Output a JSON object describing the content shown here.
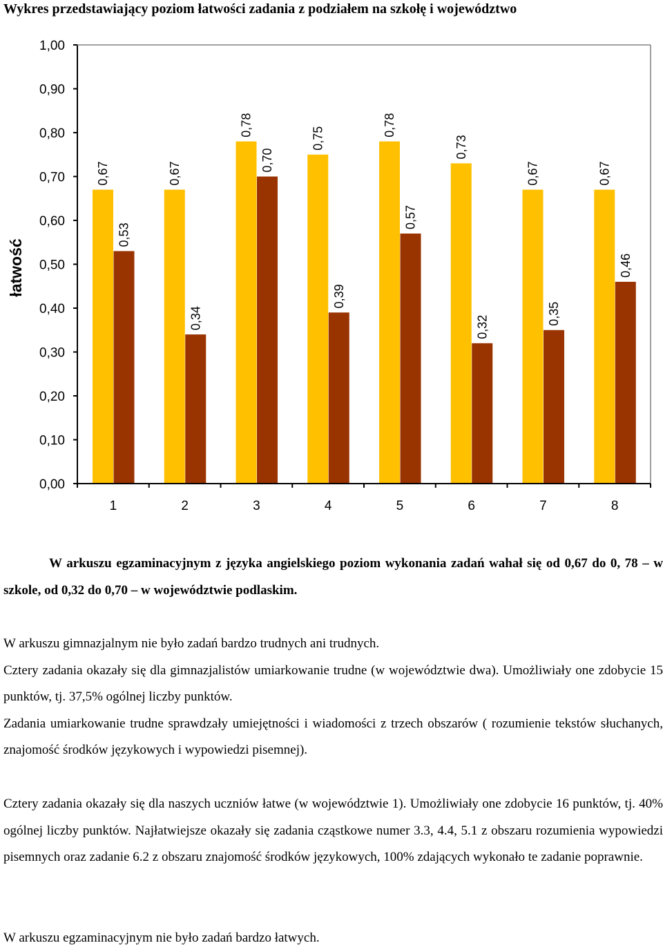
{
  "chart_data": {
    "type": "bar",
    "title": "Wykres przedstawiający poziom łatwości zadania z podziałem na szkołę i województwo",
    "ylabel": "łatwość",
    "xlabel": "",
    "ylim": [
      0,
      1
    ],
    "yticks": [
      "0,00",
      "0,10",
      "0,20",
      "0,30",
      "0,40",
      "0,50",
      "0,60",
      "0,70",
      "0,80",
      "0,90",
      "1,00"
    ],
    "categories": [
      "1",
      "2",
      "3",
      "4",
      "5",
      "6",
      "7",
      "8"
    ],
    "series": [
      {
        "color": "#FFC000",
        "values": [
          0.67,
          0.67,
          0.78,
          0.75,
          0.78,
          0.73,
          0.67,
          0.67
        ],
        "labels": [
          "0,67",
          "0,67",
          "0,78",
          "0,75",
          "0,78",
          "0,73",
          "0,67",
          "0,67"
        ]
      },
      {
        "color": "#993300",
        "values": [
          0.53,
          0.34,
          0.7,
          0.39,
          0.57,
          0.32,
          0.35,
          0.46
        ],
        "labels": [
          "0,53",
          "0,34",
          "0,70",
          "0,39",
          "0,57",
          "0,32",
          "0,35",
          "0,46"
        ]
      }
    ],
    "grid": false,
    "legend": "none"
  },
  "text": {
    "p1": [
      "W arkuszu egzaminacyjnym z języka angielskiego poziom wykonania zadań wahał się od 0,67 do 0, 78 – w szkole, od 0,32 do 0,70 – w województwie podlaskim."
    ],
    "p2": [
      "W arkuszu gimnazjalnym nie było zadań bardzo trudnych ani trudnych.",
      "Cztery zadania okazały się dla gimnazjalistów umiarkowanie trudne (w województwie dwa). Umożliwiały one zdobycie 15 punktów, tj. 37,5% ogólnej liczby punktów.",
      "Zadania umiarkowanie trudne sprawdzały umiejętności i wiadomości z trzech obszarów ( rozumienie tekstów słuchanych, znajomość środków językowych i wypowiedzi pisemnej)."
    ],
    "p3": [
      "Cztery zadania okazały się dla naszych uczniów łatwe (w województwie 1). Umożliwiały one zdobycie 16 punktów, tj. 40% ogólnej liczby punktów. Najłatwiejsze okazały się zadania cząstkowe numer 3.3, 4.4, 5.1 z obszaru rozumienia wypowiedzi pisemnych oraz zadanie 6.2 z obszaru znajomość środków językowych, 100% zdających wykonało te zadanie poprawnie."
    ],
    "p4": [
      "W arkuszu egzaminacyjnym nie było zadań bardzo łatwych."
    ]
  }
}
